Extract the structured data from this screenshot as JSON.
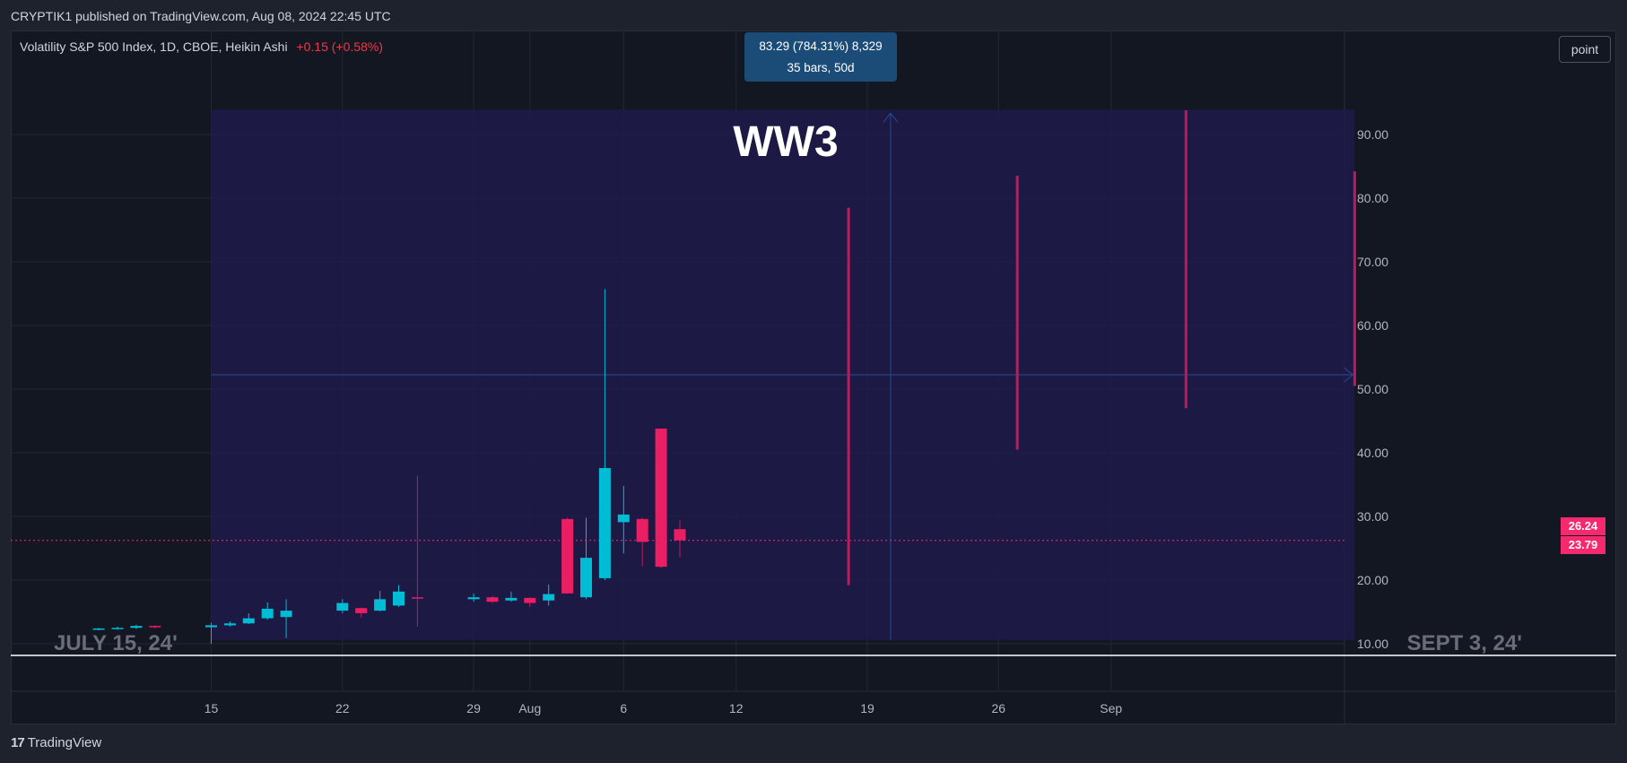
{
  "header": {
    "published": "CRYPTIK1 published on TradingView.com, Aug 08, 2024 22:45 UTC"
  },
  "legend": {
    "symbol": "Volatility S&P 500 Index, 1D, CBOE, Heikin Ashi",
    "change": "+0.15 (+0.58%)"
  },
  "toolbar": {
    "point_label": "point"
  },
  "measure": {
    "line1": "83.29 (784.31%) 8,329",
    "line2": "35 bars, 50d"
  },
  "annotation": {
    "title": "WW3",
    "left_date": "JULY 15, 24'",
    "right_date": "SEPT 3, 24'"
  },
  "price_tags": {
    "last": "26.24",
    "prev": "23.79"
  },
  "footer": {
    "brand": "TradingView"
  },
  "colors": {
    "up": "#00bcd4",
    "down": "#e91e63",
    "wick_up": "#00bcd4",
    "wick_down": "#c2185b",
    "zone": "#1e1b4b"
  },
  "chart_data": {
    "type": "candlestick",
    "style": "Heikin Ashi",
    "symbol": "VIX",
    "y_ticks": [
      10,
      20,
      30,
      40,
      50,
      60,
      70,
      80,
      90
    ],
    "y_tick_labels": [
      "10.00",
      "20.00",
      "30.00",
      "40.00",
      "50.00",
      "60.00",
      "70.00",
      "80.00",
      "90.00"
    ],
    "x_tick_labels": [
      {
        "label": "15",
        "day": 15
      },
      {
        "label": "22",
        "day": 22
      },
      {
        "label": "29",
        "day": 29
      },
      {
        "label": "Aug",
        "day": 32
      },
      {
        "label": "6",
        "day": 37
      },
      {
        "label": "12",
        "day": 43
      },
      {
        "label": "19",
        "day": 50
      },
      {
        "label": "26",
        "day": 57
      },
      {
        "label": "Sep",
        "day": 63
      }
    ],
    "candles": [
      {
        "d": 9,
        "o": 12.3,
        "h": 12.5,
        "l": 12.1,
        "c": 12.4
      },
      {
        "d": 10,
        "o": 12.4,
        "h": 12.7,
        "l": 12.2,
        "c": 12.5
      },
      {
        "d": 11,
        "o": 12.5,
        "h": 13.0,
        "l": 12.3,
        "c": 12.8
      },
      {
        "d": 12,
        "o": 12.8,
        "h": 12.9,
        "l": 12.4,
        "c": 12.6
      },
      {
        "d": 15,
        "o": 12.6,
        "h": 13.3,
        "l": 10.0,
        "c": 12.9
      },
      {
        "d": 16,
        "o": 12.9,
        "h": 13.5,
        "l": 12.7,
        "c": 13.2
      },
      {
        "d": 17,
        "o": 13.2,
        "h": 14.8,
        "l": 13.1,
        "c": 14.0
      },
      {
        "d": 18,
        "o": 14.0,
        "h": 16.5,
        "l": 13.8,
        "c": 15.5
      },
      {
        "d": 19,
        "o": 14.2,
        "h": 17.0,
        "l": 10.9,
        "c": 15.2
      },
      {
        "d": 22,
        "o": 15.2,
        "h": 17.0,
        "l": 14.8,
        "c": 16.4
      },
      {
        "d": 23,
        "o": 15.6,
        "h": 15.7,
        "l": 14.1,
        "c": 14.8
      },
      {
        "d": 24,
        "o": 15.2,
        "h": 18.3,
        "l": 15.1,
        "c": 17.0
      },
      {
        "d": 25,
        "o": 16.0,
        "h": 19.2,
        "l": 15.8,
        "c": 18.2
      },
      {
        "d": 26,
        "o": 17.3,
        "h": 36.4,
        "l": 12.7,
        "c": 17.1
      },
      {
        "d": 29,
        "o": 17.0,
        "h": 17.9,
        "l": 16.6,
        "c": 17.3
      },
      {
        "d": 30,
        "o": 17.3,
        "h": 17.5,
        "l": 16.4,
        "c": 16.6
      },
      {
        "d": 31,
        "o": 16.8,
        "h": 18.2,
        "l": 16.6,
        "c": 17.2
      },
      {
        "d": 32,
        "o": 17.2,
        "h": 17.3,
        "l": 15.8,
        "c": 16.4
      },
      {
        "d": 33,
        "o": 16.8,
        "h": 19.3,
        "l": 16.0,
        "c": 17.8
      },
      {
        "d": 34,
        "o": 29.6,
        "h": 29.8,
        "l": 18.1,
        "c": 17.9
      },
      {
        "d": 35,
        "o": 17.3,
        "h": 29.8,
        "l": 17.0,
        "c": 23.5
      },
      {
        "d": 36,
        "o": 20.3,
        "h": 65.7,
        "l": 20.0,
        "c": 37.6
      },
      {
        "d": 37,
        "o": 29.1,
        "h": 34.8,
        "l": 24.2,
        "c": 30.3
      },
      {
        "d": 38,
        "o": 29.6,
        "h": 29.8,
        "l": 22.2,
        "c": 26.0
      },
      {
        "d": 39,
        "o": 43.8,
        "h": 43.8,
        "l": 22.0,
        "c": 22.1
      },
      {
        "d": 40,
        "o": 28.0,
        "h": 29.4,
        "l": 23.6,
        "c": 26.24
      },
      {
        "d": 49,
        "o": 78.5,
        "h": 78.5,
        "l": 19.2,
        "c": 19.2
      },
      {
        "d": 58,
        "o": 83.5,
        "h": 83.5,
        "l": 40.5,
        "c": 40.5
      },
      {
        "d": 67,
        "o": 93.8,
        "h": 93.8,
        "l": 47.0,
        "c": 47.0
      },
      {
        "d": 76,
        "o": 84.2,
        "h": 84.2,
        "l": 50.5,
        "c": 50.5
      }
    ],
    "last_price": 26.24,
    "measure_zone": {
      "from_day": 15,
      "to_day": 76,
      "low": 10.6,
      "high": 93.9
    }
  }
}
